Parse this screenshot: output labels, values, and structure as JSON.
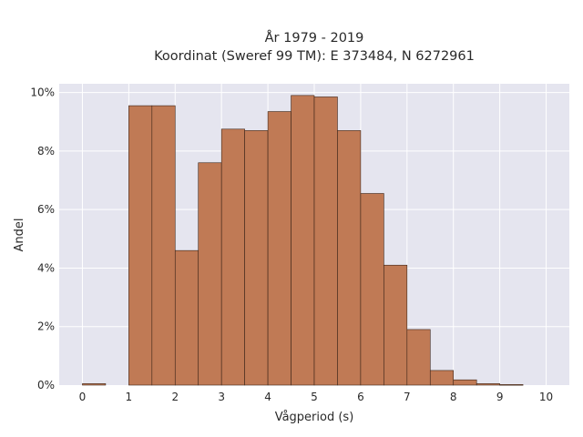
{
  "chart_data": {
    "type": "bar",
    "title_line1": "År 1979 - 2019",
    "title_line2": "Koordinat (Sweref 99 TM): E 373484, N 6272961",
    "xlabel": "Vågperiod (s)",
    "ylabel": "Andel",
    "xlim": [
      -0.5,
      10.5
    ],
    "ylim": [
      0,
      10.3
    ],
    "x_ticks": [
      0,
      1,
      2,
      3,
      4,
      5,
      6,
      7,
      8,
      9,
      10
    ],
    "x_tick_labels": [
      "0",
      "1",
      "2",
      "3",
      "4",
      "5",
      "6",
      "7",
      "8",
      "9",
      "10"
    ],
    "y_ticks": [
      0,
      2,
      4,
      6,
      8,
      10
    ],
    "y_tick_labels": [
      "0%",
      "2%",
      "4%",
      "6%",
      "8%",
      "10%"
    ],
    "bin_width": 0.5,
    "bins": [
      {
        "start": 0.0,
        "value": 0.05
      },
      {
        "start": 1.0,
        "value": 9.55
      },
      {
        "start": 1.5,
        "value": 9.55
      },
      {
        "start": 2.0,
        "value": 4.6
      },
      {
        "start": 2.5,
        "value": 7.6
      },
      {
        "start": 3.0,
        "value": 8.75
      },
      {
        "start": 3.5,
        "value": 8.7
      },
      {
        "start": 4.0,
        "value": 9.35
      },
      {
        "start": 4.5,
        "value": 9.9
      },
      {
        "start": 5.0,
        "value": 9.85
      },
      {
        "start": 5.5,
        "value": 8.7
      },
      {
        "start": 6.0,
        "value": 6.55
      },
      {
        "start": 6.5,
        "value": 4.1
      },
      {
        "start": 7.0,
        "value": 1.9
      },
      {
        "start": 7.5,
        "value": 0.5
      },
      {
        "start": 8.0,
        "value": 0.18
      },
      {
        "start": 8.5,
        "value": 0.05
      },
      {
        "start": 9.0,
        "value": 0.02
      }
    ],
    "grid": true,
    "colors": {
      "bar_fill": "#c07a55",
      "bar_stroke": "#3b2418",
      "plot_bg": "#e5e5ef",
      "grid": "#ffffff"
    }
  }
}
